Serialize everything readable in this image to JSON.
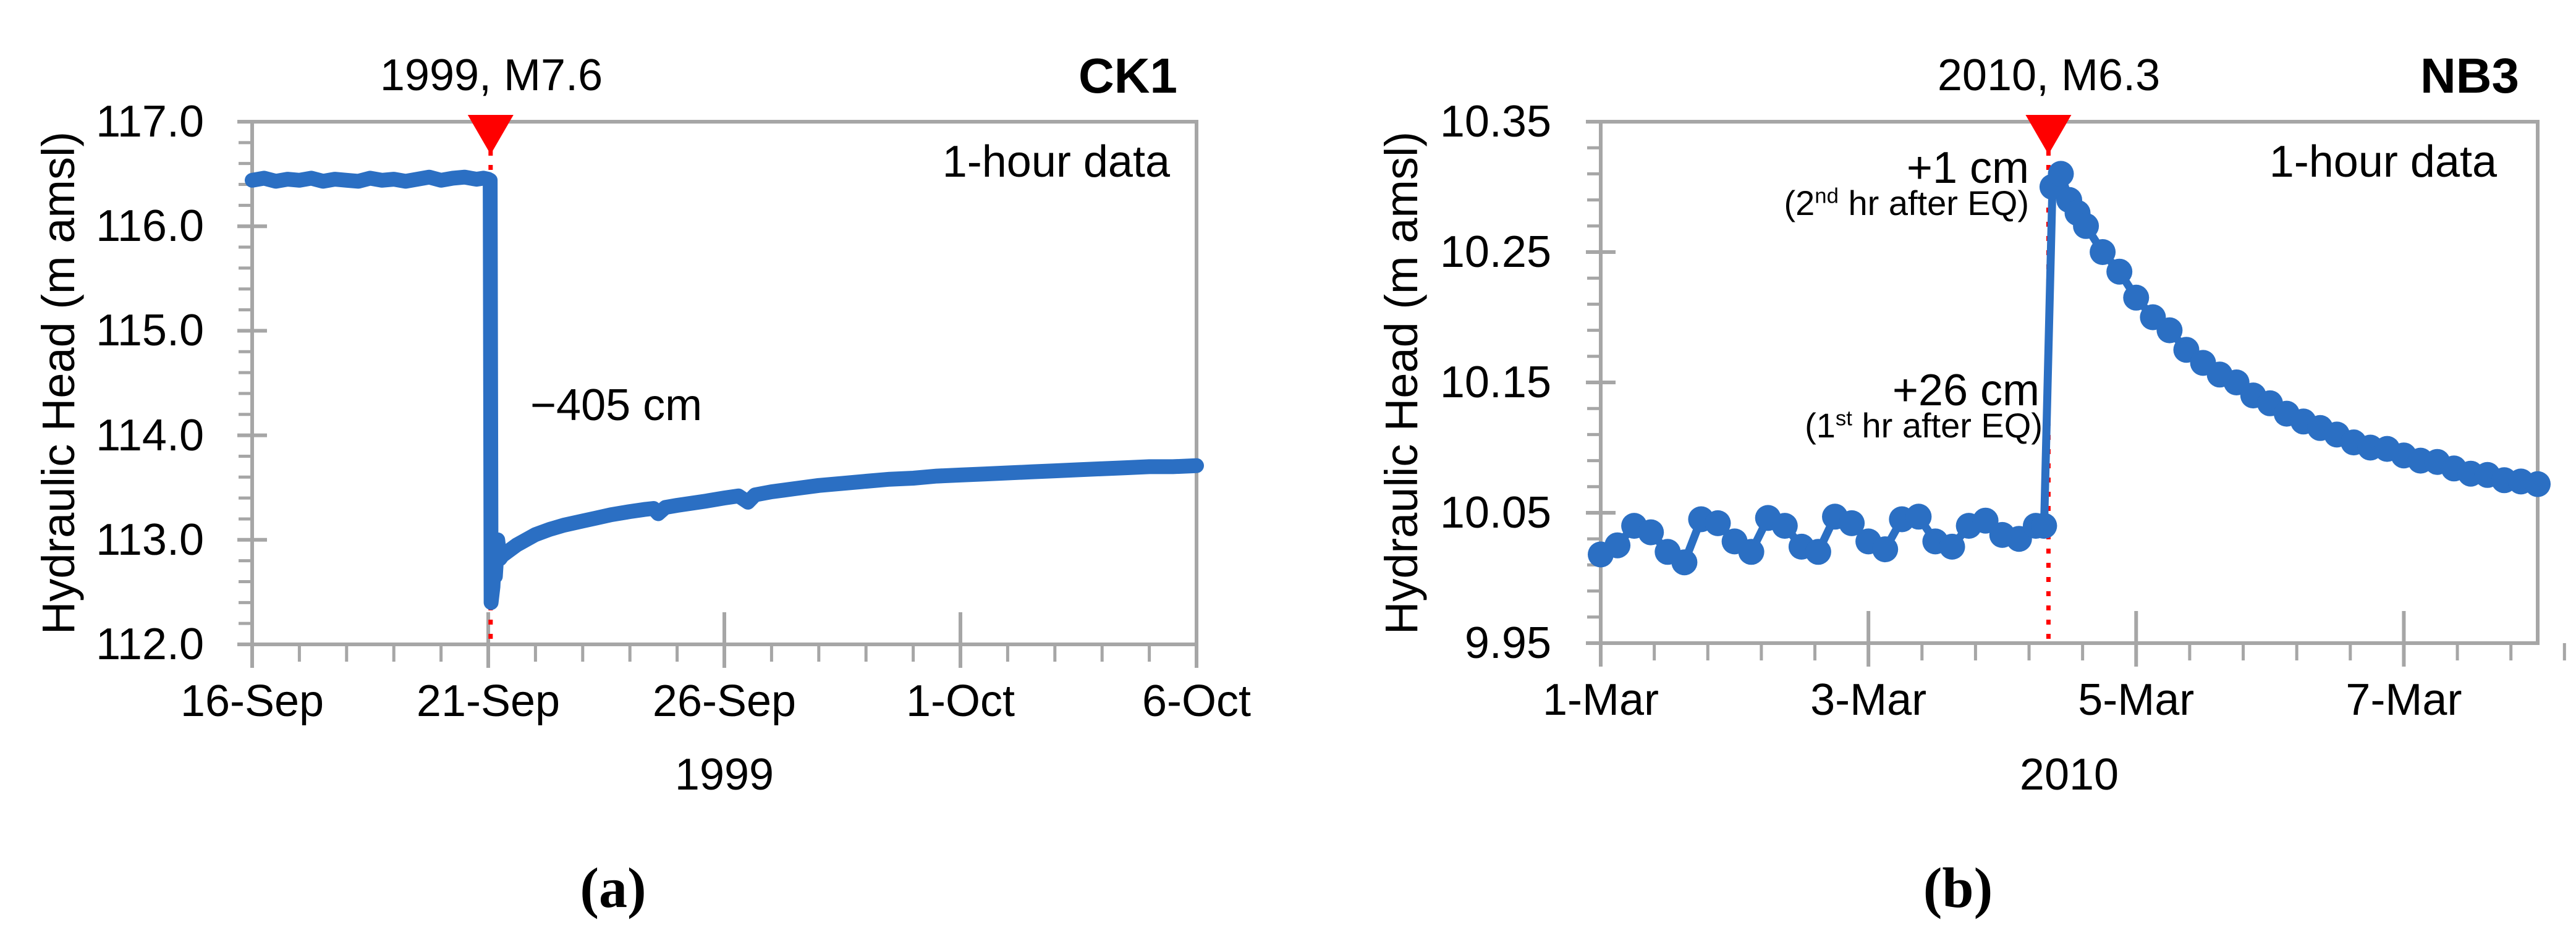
{
  "figure": {
    "caption_a": "(a)",
    "caption_b": "(b)"
  },
  "colors": {
    "series_blue": "#2B6FC3",
    "axis_gray": "#A6A6A6",
    "eq_red": "#FF0000",
    "text_black": "#000000"
  },
  "chart_data": [
    {
      "id": "a",
      "type": "line",
      "station": "CK1",
      "title": "1999, M7.6",
      "note": "1-hour data",
      "ylabel": "Hydraulic Head (m amsl)",
      "xlabel": "1999",
      "ylim": [
        112.0,
        117.0
      ],
      "y_major": 1.0,
      "y_minor": 0.2,
      "y_ticks": [
        {
          "label": "117.0",
          "value": 117.0
        },
        {
          "label": "116.0",
          "value": 116.0
        },
        {
          "label": "115.0",
          "value": 115.0
        },
        {
          "label": "114.0",
          "value": 114.0
        },
        {
          "label": "113.0",
          "value": 113.0
        },
        {
          "label": "112.0",
          "value": 112.0
        }
      ],
      "x_span_days": 20,
      "x_major_days": 5,
      "x_minor_days": 1,
      "x_ticks": [
        {
          "label": "16-Sep",
          "day": 0
        },
        {
          "label": "21-Sep",
          "day": 5
        },
        {
          "label": "26-Sep",
          "day": 10
        },
        {
          "label": "1-Oct",
          "day": 15
        },
        {
          "label": "6-Oct",
          "day": 20
        }
      ],
      "grid": false,
      "legend": "none",
      "eq_line_day": 5.05,
      "eq_marker": "red-triangle",
      "annotations": {
        "drop": {
          "text": "−405 cm"
        }
      },
      "baseline_value": 116.45,
      "coseismic_drop_m": -4.05,
      "series": [
        [
          0,
          116.44
        ],
        [
          0.25,
          116.46
        ],
        [
          0.5,
          116.43
        ],
        [
          0.75,
          116.45
        ],
        [
          1,
          116.44
        ],
        [
          1.25,
          116.46
        ],
        [
          1.5,
          116.43
        ],
        [
          1.75,
          116.45
        ],
        [
          2,
          116.44
        ],
        [
          2.25,
          116.43
        ],
        [
          2.5,
          116.46
        ],
        [
          2.75,
          116.44
        ],
        [
          3,
          116.45
        ],
        [
          3.25,
          116.43
        ],
        [
          3.5,
          116.45
        ],
        [
          3.75,
          116.47
        ],
        [
          4,
          116.44
        ],
        [
          4.25,
          116.46
        ],
        [
          4.5,
          116.47
        ],
        [
          4.75,
          116.45
        ],
        [
          4.9,
          116.46
        ],
        [
          5.0,
          116.45
        ],
        [
          5.04,
          116.44
        ],
        [
          5.06,
          112.4
        ],
        [
          5.1,
          112.55
        ],
        [
          5.12,
          112.75
        ],
        [
          5.15,
          112.65
        ],
        [
          5.2,
          113.0
        ],
        [
          5.25,
          112.82
        ],
        [
          5.3,
          112.85
        ],
        [
          5.45,
          112.9
        ],
        [
          5.6,
          112.95
        ],
        [
          5.8,
          113.0
        ],
        [
          6.0,
          113.05
        ],
        [
          6.3,
          113.1
        ],
        [
          6.6,
          113.14
        ],
        [
          7.0,
          113.18
        ],
        [
          7.3,
          113.21
        ],
        [
          7.6,
          113.24
        ],
        [
          8.0,
          113.27
        ],
        [
          8.3,
          113.29
        ],
        [
          8.5,
          113.3
        ],
        [
          8.6,
          113.25
        ],
        [
          8.75,
          113.31
        ],
        [
          9.0,
          113.33
        ],
        [
          9.3,
          113.35
        ],
        [
          9.6,
          113.37
        ],
        [
          10.0,
          113.4
        ],
        [
          10.3,
          113.42
        ],
        [
          10.5,
          113.36
        ],
        [
          10.65,
          113.43
        ],
        [
          11,
          113.46
        ],
        [
          11.5,
          113.49
        ],
        [
          12,
          113.52
        ],
        [
          12.5,
          113.54
        ],
        [
          13,
          113.56
        ],
        [
          13.5,
          113.58
        ],
        [
          14,
          113.59
        ],
        [
          14.5,
          113.61
        ],
        [
          15,
          113.62
        ],
        [
          15.5,
          113.63
        ],
        [
          16,
          113.64
        ],
        [
          16.5,
          113.65
        ],
        [
          17,
          113.66
        ],
        [
          17.5,
          113.67
        ],
        [
          18,
          113.68
        ],
        [
          18.5,
          113.69
        ],
        [
          19,
          113.7
        ],
        [
          19.5,
          113.7
        ],
        [
          20,
          113.71
        ]
      ]
    },
    {
      "id": "b",
      "type": "scatter",
      "station": "NB3",
      "title": "2010, M6.3",
      "note": "1-hour data",
      "ylabel": "Hydraulic Head (m amsl)",
      "xlabel": "2010",
      "ylim": [
        9.95,
        10.35
      ],
      "y_major": 0.1,
      "y_minor": 0.02,
      "y_ticks": [
        {
          "label": "10.35",
          "value": 10.35
        },
        {
          "label": "10.25",
          "value": 10.25
        },
        {
          "label": "10.15",
          "value": 10.15
        },
        {
          "label": "10.05",
          "value": 10.05
        },
        {
          "label": "9.95",
          "value": 9.95
        }
      ],
      "x_span_days": 7,
      "x_major_days": 2,
      "x_minor_days": 0.4,
      "x_ticks": [
        {
          "label": "1-Mar",
          "day": 0
        },
        {
          "label": "3-Mar",
          "day": 2
        },
        {
          "label": "5-Mar",
          "day": 4
        },
        {
          "label": "7-Mar",
          "day": 6
        }
      ],
      "grid": false,
      "legend": "none",
      "eq_line_day": 3.345,
      "eq_marker": "red-triangle",
      "annotations": {
        "peak2": {
          "text": "+1 cm"
        },
        "peak2_sub": {
          "pre": "(2",
          "sup": "nd",
          "post": " hr after EQ)"
        },
        "peak1": {
          "text": "+26 cm"
        },
        "peak1_sub": {
          "pre": "(1",
          "sup": "st",
          "post": " hr after EQ)"
        }
      },
      "baseline_value": 10.04,
      "coseismic_rise_first_hr_m": 0.26,
      "coseismic_rise_second_hr_m": 0.01,
      "series": [
        [
          0,
          10.018
        ],
        [
          0.125,
          10.025
        ],
        [
          0.25,
          10.04
        ],
        [
          0.375,
          10.035
        ],
        [
          0.5,
          10.02
        ],
        [
          0.625,
          10.012
        ],
        [
          0.75,
          10.045
        ],
        [
          0.875,
          10.042
        ],
        [
          1.0,
          10.028
        ],
        [
          1.125,
          10.02
        ],
        [
          1.25,
          10.046
        ],
        [
          1.375,
          10.04
        ],
        [
          1.5,
          10.024
        ],
        [
          1.625,
          10.02
        ],
        [
          1.75,
          10.047
        ],
        [
          1.875,
          10.042
        ],
        [
          2.0,
          10.028
        ],
        [
          2.125,
          10.022
        ],
        [
          2.25,
          10.045
        ],
        [
          2.375,
          10.047
        ],
        [
          2.5,
          10.028
        ],
        [
          2.625,
          10.024
        ],
        [
          2.75,
          10.04
        ],
        [
          2.875,
          10.044
        ],
        [
          3.0,
          10.033
        ],
        [
          3.125,
          10.03
        ],
        [
          3.25,
          10.04
        ],
        [
          3.3125,
          10.04
        ],
        [
          3.375,
          10.3
        ],
        [
          3.4375,
          10.31
        ],
        [
          3.5,
          10.29
        ],
        [
          3.5625,
          10.28
        ],
        [
          3.625,
          10.27
        ],
        [
          3.75,
          10.25
        ],
        [
          3.875,
          10.235
        ],
        [
          4.0,
          10.215
        ],
        [
          4.125,
          10.2
        ],
        [
          4.25,
          10.19
        ],
        [
          4.375,
          10.175
        ],
        [
          4.5,
          10.165
        ],
        [
          4.625,
          10.156
        ],
        [
          4.75,
          10.15
        ],
        [
          4.875,
          10.14
        ],
        [
          5.0,
          10.134
        ],
        [
          5.125,
          10.126
        ],
        [
          5.25,
          10.12
        ],
        [
          5.375,
          10.115
        ],
        [
          5.5,
          10.11
        ],
        [
          5.625,
          10.104
        ],
        [
          5.75,
          10.1
        ],
        [
          5.875,
          10.099
        ],
        [
          6.0,
          10.094
        ],
        [
          6.125,
          10.09
        ],
        [
          6.25,
          10.089
        ],
        [
          6.375,
          10.084
        ],
        [
          6.5,
          10.08
        ],
        [
          6.625,
          10.079
        ],
        [
          6.75,
          10.075
        ],
        [
          6.875,
          10.074
        ],
        [
          7.0,
          10.072
        ]
      ]
    }
  ]
}
